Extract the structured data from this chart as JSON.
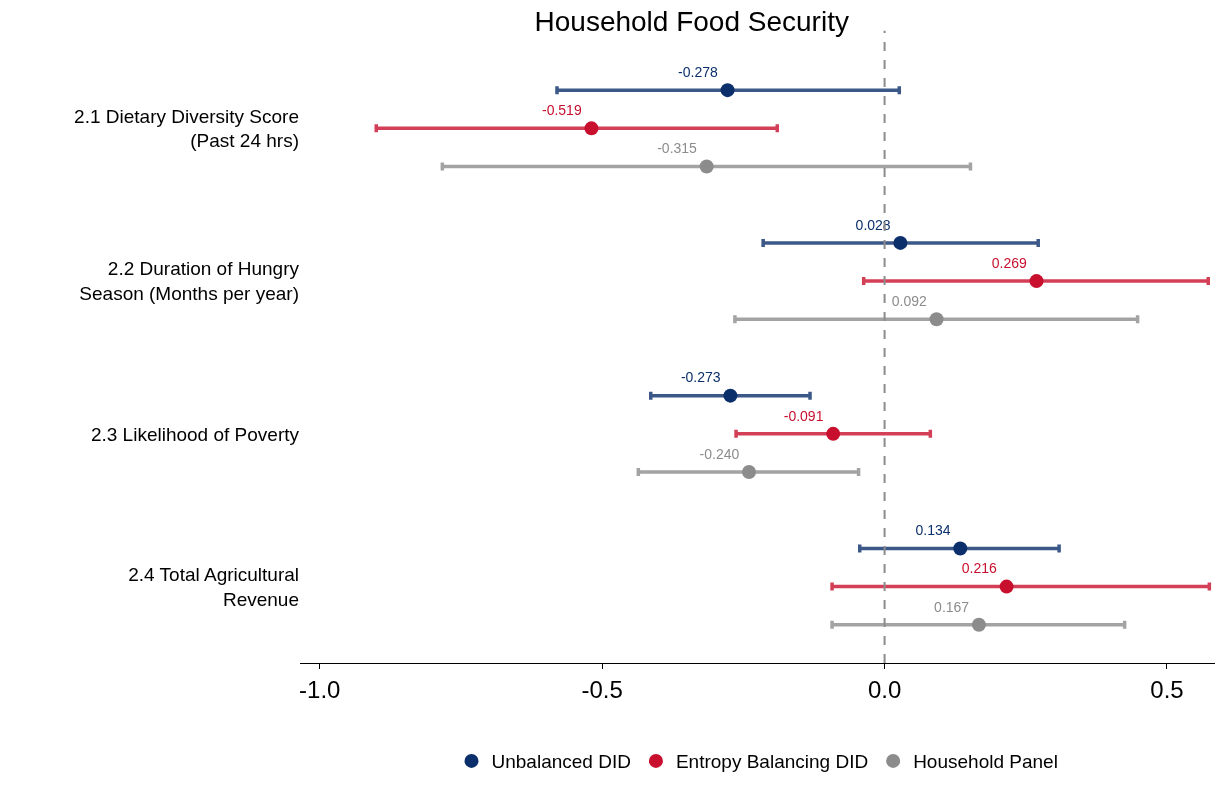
{
  "chart_data": {
    "type": "scatter",
    "orientation": "horizontal",
    "title": "Household Food Security",
    "categories": [
      "2.1 Dietary Diversity Score\n(Past 24 hrs)",
      "2.2 Duration of Hungry\nSeason (Months per year)",
      "2.3 Likelihood of Poverty",
      "2.4 Total Agricultural\nRevenue"
    ],
    "series": [
      {
        "name": "Unbalanced DID",
        "color": "#0b2f6b",
        "values": [
          -0.278,
          0.028,
          -0.273,
          0.134
        ],
        "value_labels": [
          "-0.278",
          "0.028",
          "-0.273",
          "0.134"
        ],
        "errors": [
          [
            -0.58,
            0.026
          ],
          [
            -0.215,
            0.272
          ],
          [
            -0.414,
            -0.132
          ],
          [
            -0.044,
            0.309
          ]
        ]
      },
      {
        "name": "Entropy Balancing DID",
        "color": "#c8102e",
        "values": [
          -0.519,
          0.269,
          -0.091,
          0.216
        ],
        "value_labels": [
          "-0.519",
          "0.269",
          "-0.091",
          "0.216"
        ],
        "errors": [
          [
            -0.9,
            -0.19
          ],
          [
            -0.037,
            0.573
          ],
          [
            -0.263,
            0.081
          ],
          [
            -0.093,
            0.575
          ]
        ]
      },
      {
        "name": "Household Panel",
        "color": "#8c8c8c",
        "values": [
          -0.315,
          0.092,
          -0.24,
          0.167
        ],
        "value_labels": [
          "-0.315",
          "0.092",
          "-0.240",
          "0.167"
        ],
        "errors": [
          [
            -0.783,
            0.152
          ],
          [
            -0.265,
            0.448
          ],
          [
            -0.436,
            -0.046
          ],
          [
            -0.093,
            0.425
          ]
        ]
      }
    ],
    "xlim": [
      -1.035,
      0.585
    ],
    "xticks": [
      {
        "value": -1,
        "label": "-1.0"
      },
      {
        "value": -0.5,
        "label": "-0.5"
      },
      {
        "value": 0,
        "label": "0.0"
      },
      {
        "value": 0.5,
        "label": "0.5"
      }
    ],
    "ref_lines": [
      {
        "axis": "x",
        "value": 0,
        "color": "#8c8c8c",
        "line_style": "dashed"
      }
    ],
    "legend": "bottom",
    "marker": "circle"
  }
}
